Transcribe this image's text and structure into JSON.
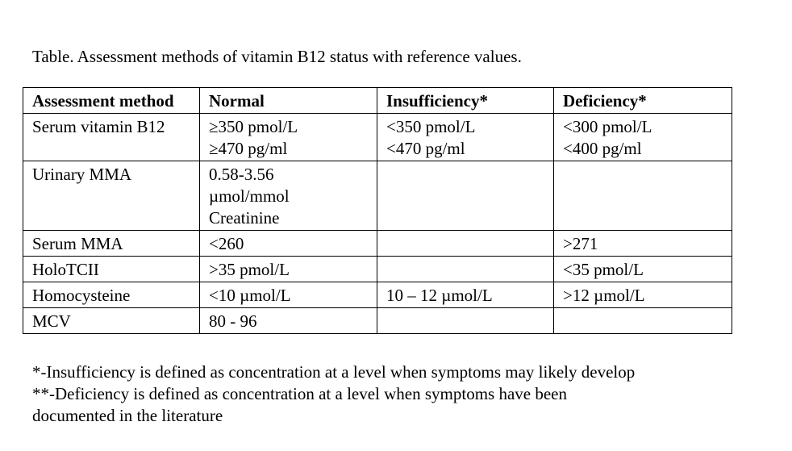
{
  "caption": "Table. Assessment methods of vitamin B12 status with reference values.",
  "table": {
    "headers": [
      "Assessment method",
      "Normal",
      "Insufficiency*",
      "Deficiency*"
    ],
    "rows": [
      {
        "method": "Serum vitamin B12",
        "normal": [
          "≥350 pmol/L",
          "≥470 pg/ml"
        ],
        "insufficiency": [
          "<350 pmol/L",
          "<470 pg/ml"
        ],
        "deficiency": [
          "<300 pmol/L",
          "<400 pg/ml"
        ]
      },
      {
        "method": "Urinary MMA",
        "normal": [
          "0.58-3.56",
          "µmol/mmol",
          "Creatinine"
        ],
        "insufficiency": [],
        "deficiency": []
      },
      {
        "method": "Serum MMA",
        "normal": [
          "<260"
        ],
        "insufficiency": [],
        "deficiency": [
          ">271"
        ]
      },
      {
        "method": "HoloTCII",
        "normal": [
          ">35 pmol/L"
        ],
        "insufficiency": [],
        "deficiency": [
          "<35 pmol/L"
        ]
      },
      {
        "method": "Homocysteine",
        "normal": [
          "<10 µmol/L"
        ],
        "insufficiency": [
          "10 – 12 µmol/L"
        ],
        "deficiency": [
          ">12 µmol/L"
        ]
      },
      {
        "method": "MCV",
        "normal": [
          "80 - 96"
        ],
        "insufficiency": [],
        "deficiency": []
      }
    ]
  },
  "footnotes": [
    "*-Insufficiency is defined as concentration at a level when symptoms may likely develop",
    "**-Deficiency is defined as concentration at a level when symptoms have been",
    "documented in the literature"
  ]
}
